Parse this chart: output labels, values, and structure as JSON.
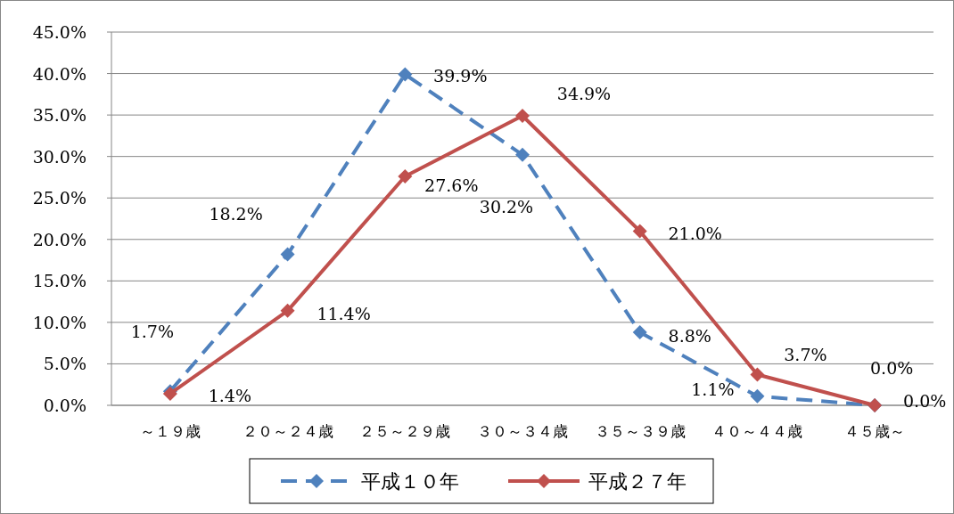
{
  "chart_data": {
    "type": "line",
    "categories": [
      "～１９歳",
      "２０～２４歳",
      "２５～２９歳",
      "３０～３４歳",
      "３５～３９歳",
      "４０～４４歳",
      "４５歳～"
    ],
    "series": [
      {
        "name": "平成１０年",
        "color": "#4f81bd",
        "line_style": "dashed",
        "values": [
          1.7,
          18.2,
          39.9,
          30.2,
          8.8,
          1.1,
          0.0
        ],
        "value_labels": [
          "1.7%",
          "18.2%",
          "39.9%",
          "30.2%",
          "8.8%",
          "1.1%",
          "0.0%"
        ]
      },
      {
        "name": "平成２７年",
        "color": "#c0504d",
        "line_style": "solid",
        "values": [
          1.4,
          11.4,
          27.6,
          34.9,
          21.0,
          3.7,
          0.0
        ],
        "value_labels": [
          "1.4%",
          "11.4%",
          "27.6%",
          "34.9%",
          "21.0%",
          "3.7%",
          "0.0%"
        ]
      }
    ],
    "ylim": [
      0,
      45
    ],
    "yticks": [
      {
        "value": 0,
        "label": "0.0%"
      },
      {
        "value": 5,
        "label": "5.0%"
      },
      {
        "value": 10,
        "label": "10.0%"
      },
      {
        "value": 15,
        "label": "15.0%"
      },
      {
        "value": 20,
        "label": "20.0%"
      },
      {
        "value": 25,
        "label": "25.0%"
      },
      {
        "value": 30,
        "label": "30.0%"
      },
      {
        "value": 35,
        "label": "35.0%"
      },
      {
        "value": 40,
        "label": "40.0%"
      },
      {
        "value": 45,
        "label": "45.0%"
      }
    ],
    "grid": "y",
    "legend": "bottom",
    "marker": "diamond"
  }
}
